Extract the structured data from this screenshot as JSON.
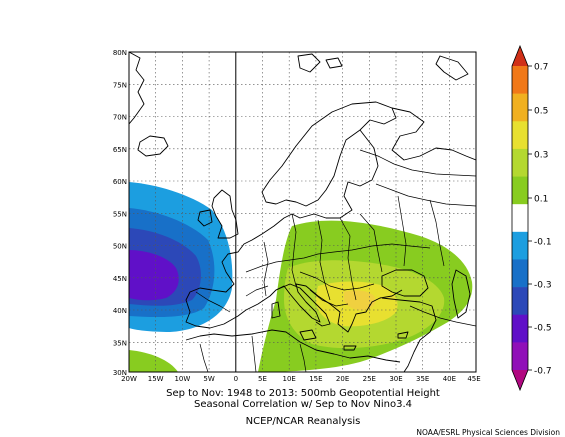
{
  "map": {
    "lat_labels": [
      "80N",
      "75N",
      "70N",
      "65N",
      "60N",
      "55N",
      "50N",
      "45N",
      "40N",
      "35N",
      "30N"
    ],
    "lon_labels": [
      "20W",
      "15W",
      "10W",
      "5W",
      "0",
      "5E",
      "10E",
      "15E",
      "20E",
      "25E",
      "30E",
      "35E",
      "40E",
      "45E"
    ],
    "lat_range": [
      30,
      80
    ],
    "lon_range": [
      -20,
      45
    ],
    "grid": true
  },
  "caption": {
    "line1": "Sep to Nov: 1948 to 2013: 500mb Geopotential Height",
    "line2": "Seasonal Correlation w/ Sep to Nov Nino3.4",
    "line3": "NCEP/NCAR Reanalysis"
  },
  "credit": "NOAA/ESRL Physical Sciences Division",
  "colorbar": {
    "labels": [
      "0.7",
      "0.5",
      "0.3",
      "0.1",
      "-0.1",
      "-0.3",
      "-0.5",
      "-0.7"
    ],
    "colors": [
      "#d03018",
      "#f07818",
      "#f0b020",
      "#e8e030",
      "#b4d830",
      "#88cc20",
      "#ffffff",
      "#1c9ee0",
      "#1870c8",
      "#2c48b8",
      "#6010c8",
      "#9010b8",
      "#b00880"
    ],
    "extend": "both"
  }
}
